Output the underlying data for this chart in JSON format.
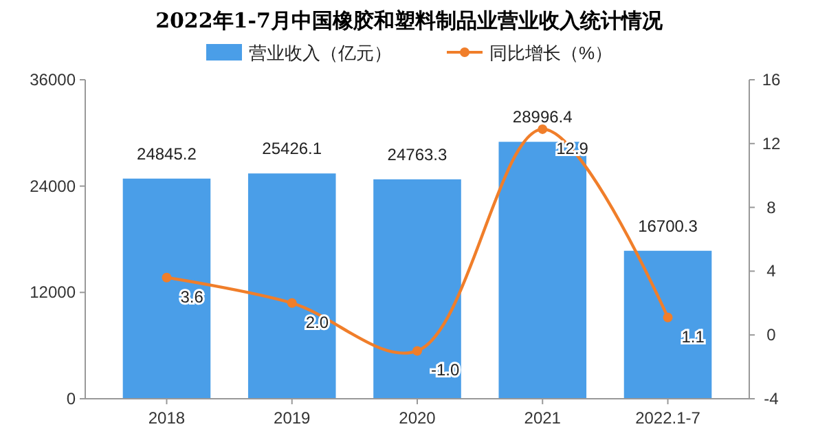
{
  "chart_data": {
    "type": "bar",
    "title": "2022年1-7月中国橡胶和塑料制品业营业收入统计情况",
    "categories": [
      "2018",
      "2019",
      "2020",
      "2021",
      "2022.1-7"
    ],
    "series": [
      {
        "name": "营业收入（亿元）",
        "color": "#4a9ee8",
        "values": [
          24845.2,
          25426.1,
          24763.3,
          28996.4,
          16700.3
        ]
      },
      {
        "name": "同比增长（%）",
        "type": "line",
        "axis": "y2",
        "color": "#f07e2a",
        "values": [
          3.6,
          2.0,
          -1.0,
          12.9,
          1.1
        ],
        "value_labels": [
          "3.6",
          "2.0",
          "-1.0",
          "12.9",
          "1.1"
        ]
      }
    ],
    "ylim": [
      0,
      36000
    ],
    "yticks": [
      0,
      12000,
      24000,
      36000
    ],
    "y2lim": [
      -4,
      16
    ],
    "y2ticks": [
      -4,
      0,
      4,
      8,
      12,
      16
    ],
    "data_labels": true,
    "legend": "top",
    "marker": "circle",
    "grid": false
  }
}
